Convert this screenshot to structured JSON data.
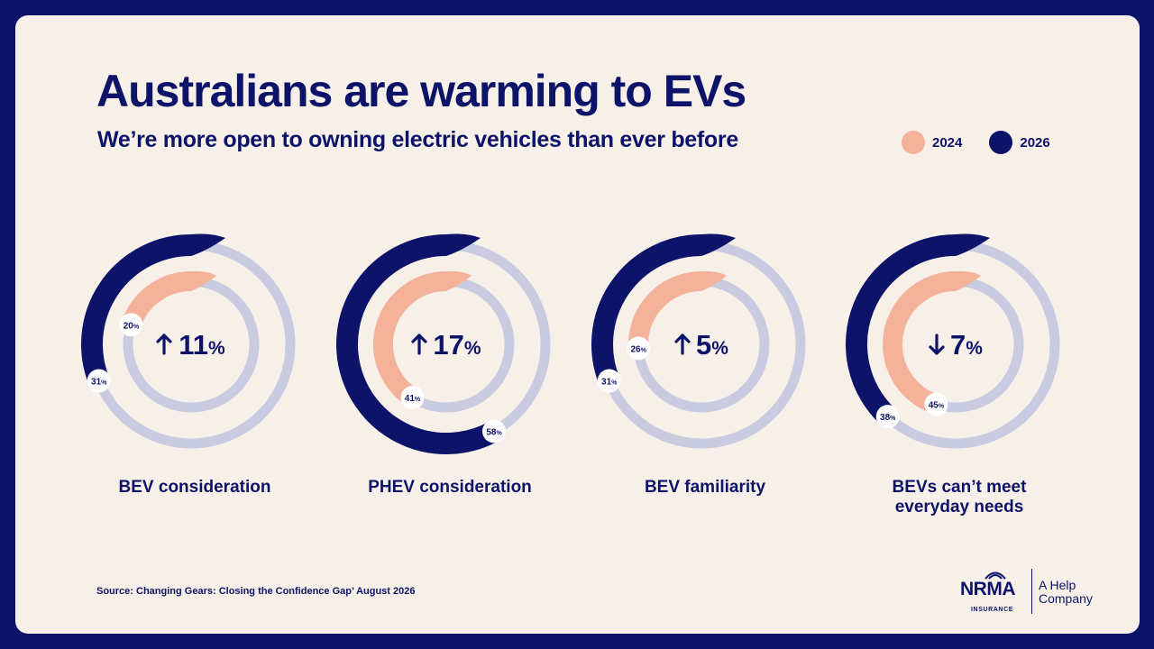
{
  "title": "Australians are warming to EVs",
  "subtitle": "We’re more open to owning electric vehicles than ever before",
  "colors": {
    "background": "#0d1368",
    "card": "#f7f0e9",
    "navy": "#0d1368",
    "peach": "#f5b29a",
    "track": "#c9cbe0"
  },
  "legend": [
    {
      "label": "2024",
      "color": "#f5b29a"
    },
    {
      "label": "2026",
      "color": "#0d1368"
    }
  ],
  "chart_data": {
    "type": "radial-bar",
    "unit": "%",
    "series": [
      {
        "name": "2024",
        "color": "#f5b29a"
      },
      {
        "name": "2026",
        "color": "#0d1368"
      }
    ],
    "items": [
      {
        "category": "BEV consideration",
        "v2024": 20,
        "v2026": 31,
        "change": "11",
        "direction": "up"
      },
      {
        "category": "PHEV consideration",
        "v2024": 41,
        "v2026": 58,
        "change": "17",
        "direction": "up"
      },
      {
        "category": "BEV familiarity",
        "v2024": 26,
        "v2026": 31,
        "change": "5",
        "direction": "up"
      },
      {
        "category": "BEVs can’t meet everyday needs",
        "v2024": 45,
        "v2026": 38,
        "change": "7",
        "direction": "down"
      }
    ]
  },
  "source": "Source: Changing Gears: Closing the Confidence Gap’ August 2026",
  "brand": {
    "name": "NRMA",
    "sub": "INSURANCE",
    "tagline_1": "A Help",
    "tagline_2": "Company"
  }
}
